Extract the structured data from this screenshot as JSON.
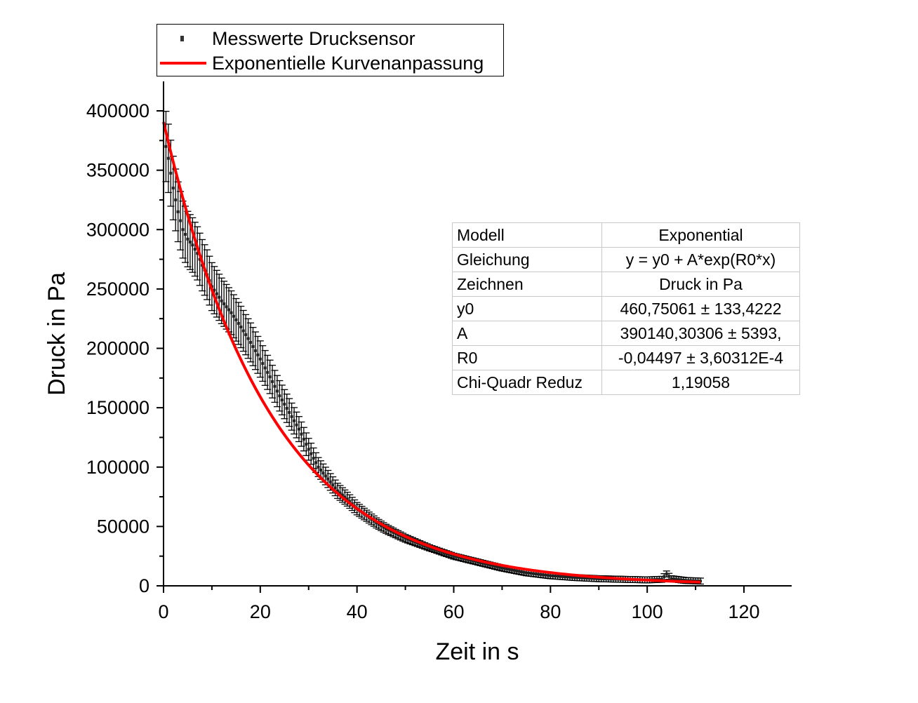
{
  "chart_data": {
    "type": "scatter",
    "xlabel": "Zeit in s",
    "ylabel": "Druck in Pa",
    "xlim": [
      0,
      130
    ],
    "ylim": [
      0,
      400000
    ],
    "x_ticks": [
      "0",
      "20",
      "40",
      "60",
      "80",
      "100",
      "120"
    ],
    "y_ticks": [
      "0",
      "50000",
      "100000",
      "150000",
      "200000",
      "250000",
      "300000",
      "350000",
      "400000"
    ],
    "grid": false,
    "legend_position": "top-left",
    "series": [
      {
        "name": "Messwerte Drucksensor",
        "kind": "scatter-with-errorbars",
        "color": "#000000",
        "x": [
          0.5,
          1,
          2,
          3,
          4,
          5,
          6,
          7,
          8,
          9,
          10,
          12,
          14,
          16,
          18,
          20,
          22,
          24,
          26,
          28,
          30,
          32,
          34,
          36,
          38,
          40,
          42,
          44,
          46,
          48,
          50,
          55,
          60,
          65,
          70,
          75,
          80,
          85,
          90,
          95,
          100,
          103,
          104,
          105,
          108,
          111
        ],
        "y": [
          370000,
          360000,
          335000,
          315000,
          300000,
          292000,
          287000,
          280000,
          270000,
          262000,
          252000,
          240000,
          230000,
          218000,
          205000,
          191000,
          176000,
          160000,
          146000,
          132000,
          115000,
          100000,
          90000,
          80000,
          73000,
          65000,
          59000,
          53000,
          48000,
          44000,
          40000,
          32000,
          25000,
          20000,
          15000,
          11000,
          8500,
          7000,
          6000,
          5500,
          5000,
          5500,
          10000,
          6000,
          4500,
          4000
        ],
        "error_fraction": 0.08,
        "error_min": 2500
      },
      {
        "name": "Exponentielle Kurvenanpassung",
        "kind": "fit-line",
        "color": "#ff0000",
        "model": {
          "y0": 460.75061,
          "A": 390140.30306,
          "R0": -0.04497
        },
        "x_range": [
          0,
          111
        ]
      }
    ]
  },
  "legend": {
    "items": [
      "Messwerte Drucksensor",
      "Exponentielle Kurvenanpassung"
    ]
  },
  "fit_table": {
    "rows": [
      {
        "key": "Modell",
        "value": "Exponential"
      },
      {
        "key": "Gleichung",
        "value": "y = y0 + A*exp(R0*x)"
      },
      {
        "key": "Zeichnen",
        "value": "Druck in Pa"
      },
      {
        "key": "y0",
        "value": "460,75061 ± 133,4222"
      },
      {
        "key": "A",
        "value": "390140,30306 ± 5393,"
      },
      {
        "key": "R0",
        "value": "-0,04497 ± 3,60312E-4"
      },
      {
        "key": "Chi-Quadr Reduz",
        "value": "1,19058"
      }
    ]
  }
}
